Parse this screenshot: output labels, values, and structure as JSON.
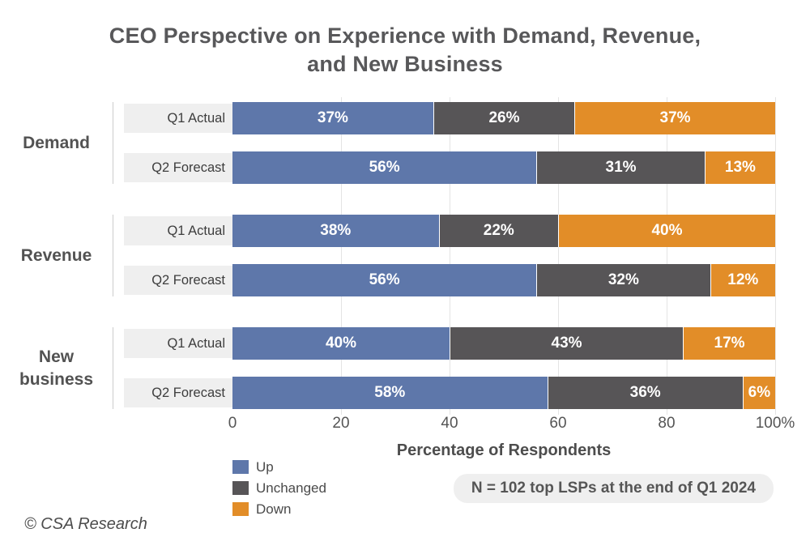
{
  "title_lines": [
    "CEO Perspective on Experience with Demand, Revenue,",
    "and New Business"
  ],
  "note": "N = 102 top LSPs at the end of Q1 2024",
  "footer": "© CSA Research",
  "chart_data": {
    "type": "bar",
    "orientation": "horizontal",
    "stacked": true,
    "title": "CEO Perspective on Experience with Demand, Revenue, and New Business",
    "xlabel": "Percentage of Respondents",
    "xlim": [
      0,
      100
    ],
    "x_ticks": [
      "0",
      "20",
      "40",
      "60",
      "80",
      "100%"
    ],
    "x_tick_values": [
      0,
      20,
      40,
      60,
      80,
      100
    ],
    "grid": true,
    "legend_position": "bottom-left",
    "value_suffix": "%",
    "series": [
      {
        "name": "Up",
        "color": "#5e77aa"
      },
      {
        "name": "Unchanged",
        "color": "#575557"
      },
      {
        "name": "Down",
        "color": "#e28d28"
      }
    ],
    "groups": [
      {
        "label": "Demand",
        "rows": [
          {
            "label": "Q1 Actual",
            "values": [
              37,
              26,
              37
            ]
          },
          {
            "label": "Q2 Forecast",
            "values": [
              56,
              31,
              13
            ]
          }
        ]
      },
      {
        "label": "Revenue",
        "rows": [
          {
            "label": "Q1 Actual",
            "values": [
              38,
              22,
              40
            ]
          },
          {
            "label": "Q2 Forecast",
            "values": [
              56,
              32,
              12
            ]
          }
        ]
      },
      {
        "label": "New business",
        "rows": [
          {
            "label": "Q1 Actual",
            "values": [
              40,
              43,
              17
            ]
          },
          {
            "label": "Q2 Forecast",
            "values": [
              58,
              36,
              6
            ]
          }
        ]
      }
    ],
    "style_colors": {
      "title_text": "#58585a",
      "axis_text": "#555555",
      "row_label_bg": "#efefef",
      "note_bg": "#efefef",
      "gridline": "#e4e4e4",
      "group_divider": "#cccccc"
    }
  }
}
